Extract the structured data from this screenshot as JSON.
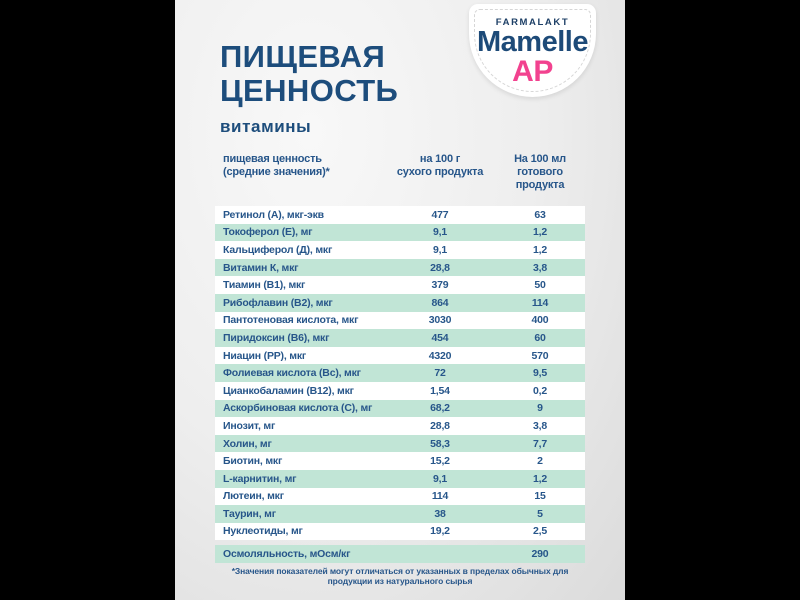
{
  "page": {
    "title_line1": "ПИЩЕВАЯ",
    "title_line2": "ЦЕННОСТЬ",
    "subtitle": "витамины"
  },
  "logo": {
    "brand": "FARMALAKT",
    "product": "Mamelle",
    "variant": "AP"
  },
  "colors": {
    "title_blue": "#1d4d7c",
    "table_text_blue": "#27568a",
    "logo_navy": "#1d4a78",
    "variant_pink": "#f2428f",
    "stripe_mint": "#c1e5d6",
    "pillarbox": "#000000"
  },
  "table": {
    "header": {
      "col1_line1": "пищевая ценность",
      "col1_line2": "(средние значения)*",
      "col2_line1": "на 100 г",
      "col2_line2": "сухого продукта",
      "col3_line1": "На 100 мл",
      "col3_line2": "готового продукта"
    },
    "rows": [
      {
        "label": "Ретинол (А), мкг-экв",
        "per100g": "477",
        "per100ml": "63"
      },
      {
        "label": "Токоферол (Е), мг",
        "per100g": "9,1",
        "per100ml": "1,2"
      },
      {
        "label": "Кальциферол (Д), мкг",
        "per100g": "9,1",
        "per100ml": "1,2"
      },
      {
        "label": "Витамин К, мкг",
        "per100g": "28,8",
        "per100ml": "3,8"
      },
      {
        "label": "Тиамин (В1), мкг",
        "per100g": "379",
        "per100ml": "50"
      },
      {
        "label": "Рибофлавин (В2), мкг",
        "per100g": "864",
        "per100ml": "114"
      },
      {
        "label": "Пантотеновая кислота, мкг",
        "per100g": "3030",
        "per100ml": "400"
      },
      {
        "label": "Пиридоксин (В6), мкг",
        "per100g": "454",
        "per100ml": "60"
      },
      {
        "label": "Ниацин (РР), мкг",
        "per100g": "4320",
        "per100ml": "570"
      },
      {
        "label": "Фолиевая кислота (Вс), мкг",
        "per100g": "72",
        "per100ml": "9,5"
      },
      {
        "label": "Цианкобаламин (В12), мкг",
        "per100g": "1,54",
        "per100ml": "0,2"
      },
      {
        "label": "Аскорбиновая кислота (С), мг",
        "per100g": "68,2",
        "per100ml": "9"
      },
      {
        "label": "Инозит, мг",
        "per100g": "28,8",
        "per100ml": "3,8"
      },
      {
        "label": "Холин, мг",
        "per100g": "58,3",
        "per100ml": "7,7"
      },
      {
        "label": "Биотин, мкг",
        "per100g": "15,2",
        "per100ml": "2"
      },
      {
        "label": "L-карнитин, мг",
        "per100g": "9,1",
        "per100ml": "1,2"
      },
      {
        "label": "Лютеин, мкг",
        "per100g": "114",
        "per100ml": "15"
      },
      {
        "label": "Таурин, мг",
        "per100g": "38",
        "per100ml": "5"
      },
      {
        "label": "Нуклеотиды, мг",
        "per100g": "19,2",
        "per100ml": "2,5"
      }
    ],
    "osmolality_row": {
      "label": "Осмоляльность, мОсм/кг",
      "per100g": "",
      "per100ml": "290"
    }
  },
  "footnote": "*Значения показателей могут отличаться от указанных в пределах обычных для продукции из натурального сырья"
}
